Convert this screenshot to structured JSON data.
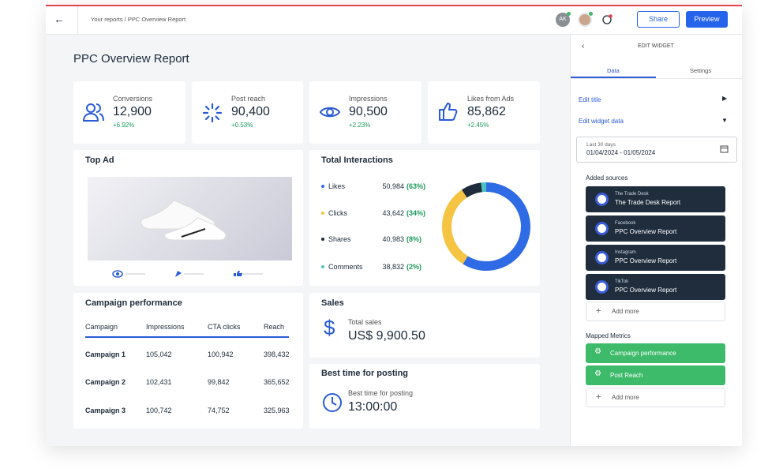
{
  "header": {
    "breadcrumb": "Your reports / PPC Overview Report",
    "avatar_initials": "AK",
    "share": "Share",
    "preview": "Preview"
  },
  "report": {
    "title": "PPC Overview Report",
    "kpis": [
      {
        "label": "Conversions",
        "value": "12,900",
        "change": "+6.92%"
      },
      {
        "label": "Post reach",
        "value": "90,400",
        "change": "+0.53%"
      },
      {
        "label": "Impressions",
        "value": "90,500",
        "change": "+2.23%"
      },
      {
        "label": "Likes from Ads",
        "value": "85,862",
        "change": "+2.45%"
      }
    ],
    "top_ad": {
      "title": "Top Ad"
    },
    "interactions": {
      "title": "Total Interactions",
      "items": [
        {
          "name": "Likes",
          "value": "50,984",
          "share": 63,
          "share_label": "(63%)",
          "color": "#2f6be4"
        },
        {
          "name": "Clicks",
          "value": "43,642",
          "share": 34,
          "share_label": "(34%)",
          "color": "#f5c443"
        },
        {
          "name": "Shares",
          "value": "40,983",
          "share": 8,
          "share_label": "(8%)",
          "color": "#1d2b3a"
        },
        {
          "name": "Comments",
          "value": "38,832",
          "share": 2,
          "share_label": "(2%)",
          "color": "#4cc3c1"
        }
      ]
    },
    "campaigns": {
      "title": "Campaign performance",
      "columns": [
        "Campaign",
        "Impressions",
        "CTA clicks",
        "Reach"
      ],
      "rows": [
        [
          "Campaign 1",
          "105,042",
          "100,942",
          "398,432"
        ],
        [
          "Campaign 2",
          "102,431",
          "99,842",
          "365,652"
        ],
        [
          "Campaign 3",
          "100,742",
          "74,752",
          "325,963"
        ]
      ]
    },
    "sales": {
      "title": "Sales",
      "label": "Total sales",
      "value": "US$ 9,900.50"
    },
    "best_time": {
      "title": "Best time for posting",
      "label": "Best time for posting",
      "value": "13:00:00"
    }
  },
  "panel": {
    "title": "EDIT WIDGET",
    "tabs": [
      "Data",
      "Settings"
    ],
    "edit_title": "Edit title",
    "edit_data": "Edit widget data",
    "date_caption": "Last 30 days",
    "date_range": "01/04/2024 - 01/05/2024",
    "sources_title": "Added sources",
    "sources": [
      {
        "platform": "The Trade Desk",
        "report": "The Trade Desk Report"
      },
      {
        "platform": "Facebook",
        "report": "PPC Overview Report"
      },
      {
        "platform": "Instagram",
        "report": "PPC Overview Report"
      },
      {
        "platform": "TikTok",
        "report": "PPC Overview Report"
      }
    ],
    "add_more": "Add more",
    "metrics_title": "Mapped Metrics",
    "metrics": [
      "Campaign performance",
      "Post Reach"
    ]
  }
}
